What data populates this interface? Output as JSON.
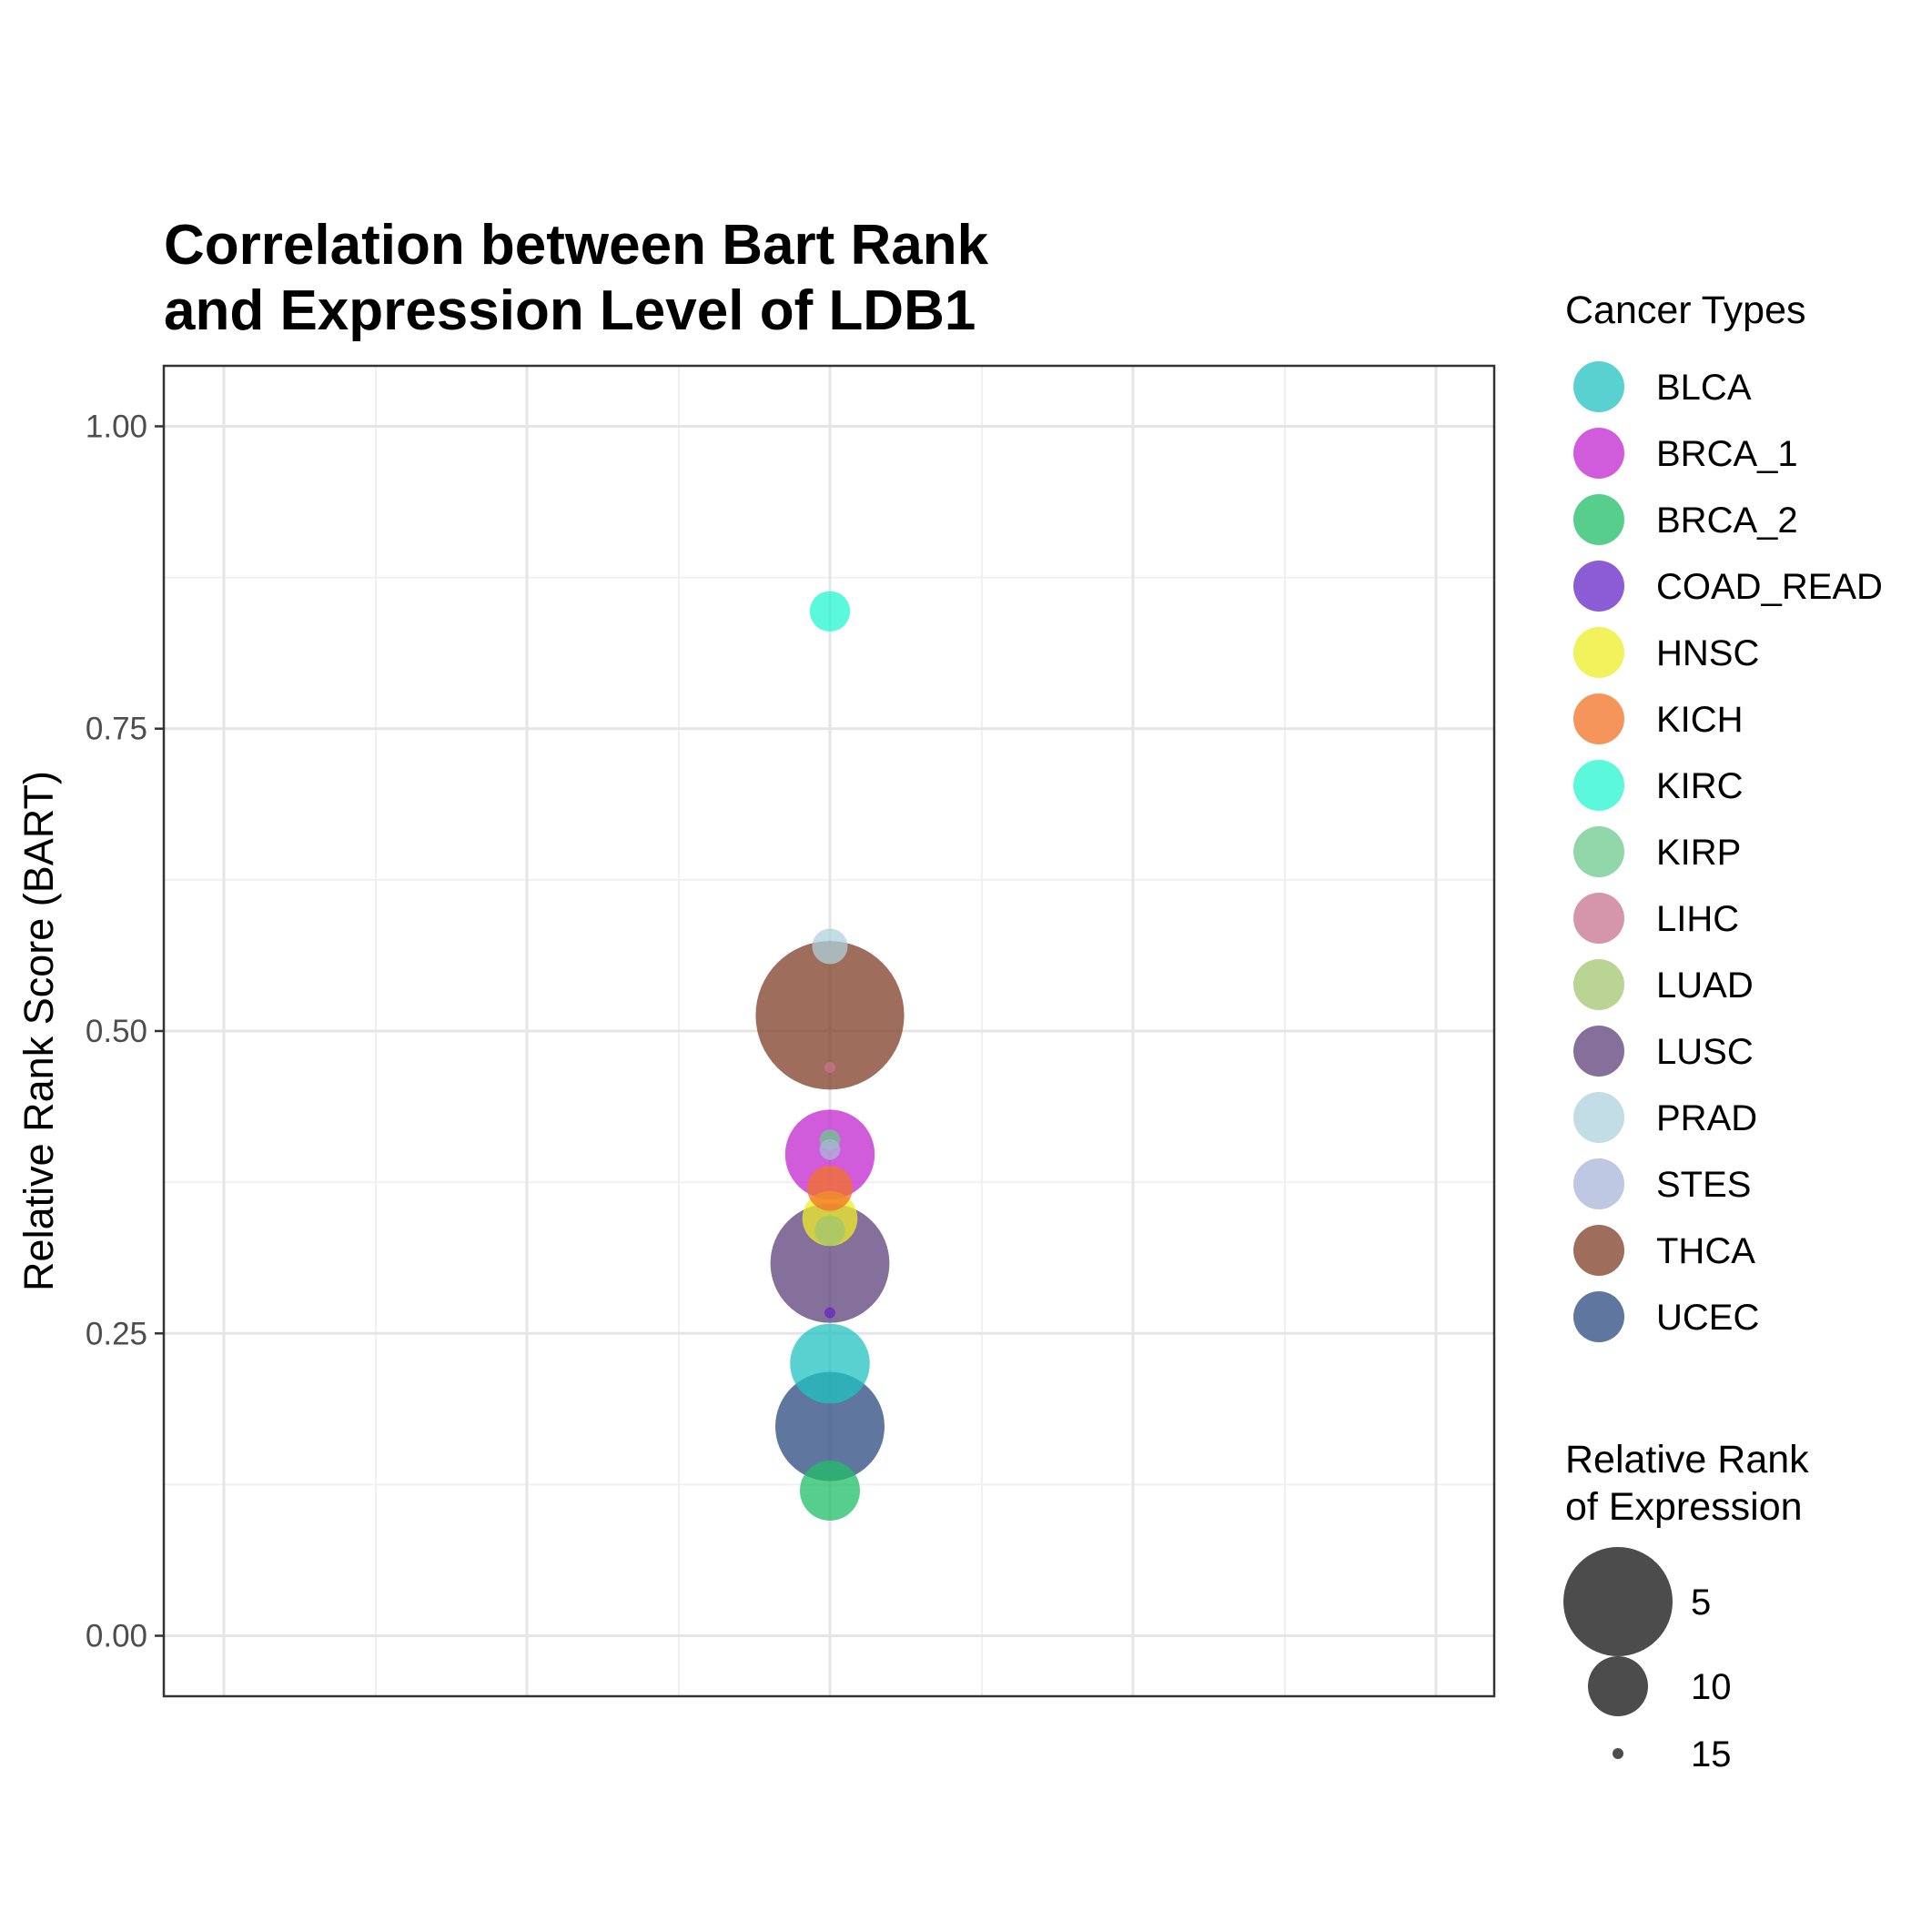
{
  "chart_data": {
    "type": "scatter",
    "title": "Correlation between Bart Rank\nand Expression Level of LDB1",
    "ylabel": "Relative Rank Score (BART)",
    "xlabel": "",
    "ylim": [
      -0.05,
      1.05
    ],
    "yticks": [
      {
        "value": 0.0,
        "label": "0.00"
      },
      {
        "value": 0.25,
        "label": "0.25"
      },
      {
        "value": 0.5,
        "label": "0.50"
      },
      {
        "value": 0.75,
        "label": "0.75"
      },
      {
        "value": 1.0,
        "label": "1.00"
      }
    ],
    "grid": true,
    "legend_position": "right",
    "color_legend": {
      "title": "Cancer Types",
      "entries": [
        {
          "name": "BLCA",
          "color": "#20C2C0"
        },
        {
          "name": "BRCA_1",
          "color": "#C225CF"
        },
        {
          "name": "BRCA_2",
          "color": "#20BE66"
        },
        {
          "name": "COAD_READ",
          "color": "#6526C6"
        },
        {
          "name": "HNSC",
          "color": "#EEEE25"
        },
        {
          "name": "KICH",
          "color": "#F27225"
        },
        {
          "name": "KIRC",
          "color": "#25F5D0"
        },
        {
          "name": "KIRP",
          "color": "#6CC98C"
        },
        {
          "name": "LIHC",
          "color": "#C77390"
        },
        {
          "name": "LUAD",
          "color": "#A2C66F"
        },
        {
          "name": "LUSC",
          "color": "#5C3F7A"
        },
        {
          "name": "PRAD",
          "color": "#ADD1DC"
        },
        {
          "name": "STES",
          "color": "#A9B6DA"
        },
        {
          "name": "THCA",
          "color": "#7E3C24"
        },
        {
          "name": "UCEC",
          "color": "#294A7E"
        }
      ]
    },
    "size_legend": {
      "title": "Relative Rank\nof Expression",
      "entries": [
        {
          "label": "5",
          "value": 5
        },
        {
          "label": "10",
          "value": 10
        },
        {
          "label": "15",
          "value": 15
        }
      ]
    },
    "points": [
      {
        "name": "THCA",
        "y": 0.513,
        "size": 1.0
      },
      {
        "name": "LUSC",
        "y": 0.308,
        "size": 4.0
      },
      {
        "name": "BRCA_1",
        "y": 0.398,
        "size": 7.0
      },
      {
        "name": "UCEC",
        "y": 0.173,
        "size": 5.0
      },
      {
        "name": "BLCA",
        "y": 0.225,
        "size": 8.0
      },
      {
        "name": "BRCA_2",
        "y": 0.12,
        "size": 10.0
      },
      {
        "name": "HNSC",
        "y": 0.345,
        "size": 10.5
      },
      {
        "name": "KICH",
        "y": 0.37,
        "size": 11.5
      },
      {
        "name": "KIRC",
        "y": 0.847,
        "size": 12.0
      },
      {
        "name": "PRAD",
        "y": 0.57,
        "size": 12.5
      },
      {
        "name": "LUAD",
        "y": 0.335,
        "size": 13.0
      },
      {
        "name": "KIRP",
        "y": 0.41,
        "size": 14.0
      },
      {
        "name": "STES",
        "y": 0.402,
        "size": 14.0
      },
      {
        "name": "COAD_READ",
        "y": 0.267,
        "size": 15.5
      },
      {
        "name": "LIHC",
        "y": 0.47,
        "size": 16.5
      }
    ]
  }
}
